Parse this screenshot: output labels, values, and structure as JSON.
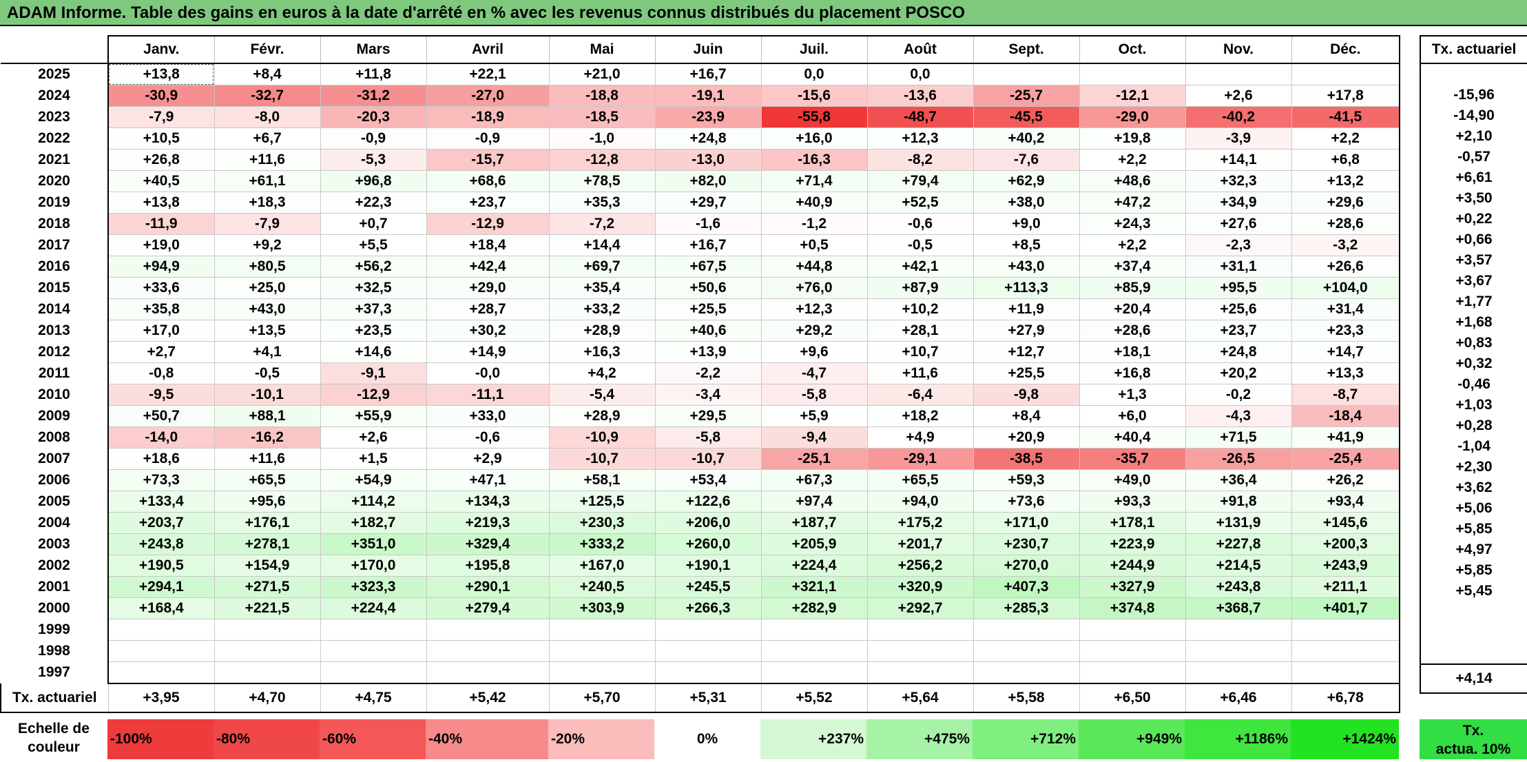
{
  "title": "ADAM Informe. Table des gains en euros à la date d'arrêté en % avec les revenus connus distribués du placement POSCO",
  "months": [
    "Janv.",
    "Févr.",
    "Mars",
    "Avril",
    "Mai",
    "Juin",
    "Juil.",
    "Août",
    "Sept.",
    "Oct.",
    "Nov.",
    "Déc."
  ],
  "side_header": "Tx. actuariel",
  "rows": [
    {
      "year": "2025",
      "vals": [
        "+13,8",
        "+8,4",
        "+11,8",
        "+22,1",
        "+21,0",
        "+16,7",
        "0,0",
        "0,0",
        "",
        "",
        "",
        ""
      ],
      "rate": ""
    },
    {
      "year": "2024",
      "vals": [
        "-30,9",
        "-32,7",
        "-31,2",
        "-27,0",
        "-18,8",
        "-19,1",
        "-15,6",
        "-13,6",
        "-25,7",
        "-12,1",
        "+2,6",
        "+17,8"
      ],
      "rate": "-15,96"
    },
    {
      "year": "2023",
      "vals": [
        "-7,9",
        "-8,0",
        "-20,3",
        "-18,9",
        "-18,5",
        "-23,9",
        "-55,8",
        "-48,7",
        "-45,5",
        "-29,0",
        "-40,2",
        "-41,5"
      ],
      "rate": "-14,90"
    },
    {
      "year": "2022",
      "vals": [
        "+10,5",
        "+6,7",
        "-0,9",
        "-0,9",
        "-1,0",
        "+24,8",
        "+16,0",
        "+12,3",
        "+40,2",
        "+19,8",
        "-3,9",
        "+2,2"
      ],
      "rate": "+2,10"
    },
    {
      "year": "2021",
      "vals": [
        "+26,8",
        "+11,6",
        "-5,3",
        "-15,7",
        "-12,8",
        "-13,0",
        "-16,3",
        "-8,2",
        "-7,6",
        "+2,2",
        "+14,1",
        "+6,8"
      ],
      "rate": "-0,57"
    },
    {
      "year": "2020",
      "vals": [
        "+40,5",
        "+61,1",
        "+96,8",
        "+68,6",
        "+78,5",
        "+82,0",
        "+71,4",
        "+79,4",
        "+62,9",
        "+48,6",
        "+32,3",
        "+13,2"
      ],
      "rate": "+6,61"
    },
    {
      "year": "2019",
      "vals": [
        "+13,8",
        "+18,3",
        "+22,3",
        "+23,7",
        "+35,3",
        "+29,7",
        "+40,9",
        "+52,5",
        "+38,0",
        "+47,2",
        "+34,9",
        "+29,6"
      ],
      "rate": "+3,50"
    },
    {
      "year": "2018",
      "vals": [
        "-11,9",
        "-7,9",
        "+0,7",
        "-12,9",
        "-7,2",
        "-1,6",
        "-1,2",
        "-0,6",
        "+9,0",
        "+24,3",
        "+27,6",
        "+28,6"
      ],
      "rate": "+0,22"
    },
    {
      "year": "2017",
      "vals": [
        "+19,0",
        "+9,2",
        "+5,5",
        "+18,4",
        "+14,4",
        "+16,7",
        "+0,5",
        "-0,5",
        "+8,5",
        "+2,2",
        "-2,3",
        "-3,2"
      ],
      "rate": "+0,66"
    },
    {
      "year": "2016",
      "vals": [
        "+94,9",
        "+80,5",
        "+56,2",
        "+42,4",
        "+69,7",
        "+67,5",
        "+44,8",
        "+42,1",
        "+43,0",
        "+37,4",
        "+31,1",
        "+26,6"
      ],
      "rate": "+3,57"
    },
    {
      "year": "2015",
      "vals": [
        "+33,6",
        "+25,0",
        "+32,5",
        "+29,0",
        "+35,4",
        "+50,6",
        "+76,0",
        "+87,9",
        "+113,3",
        "+85,9",
        "+95,5",
        "+104,0"
      ],
      "rate": "+3,67"
    },
    {
      "year": "2014",
      "vals": [
        "+35,8",
        "+43,0",
        "+37,3",
        "+28,7",
        "+33,2",
        "+25,5",
        "+12,3",
        "+10,2",
        "+11,9",
        "+20,4",
        "+25,6",
        "+31,4"
      ],
      "rate": "+1,77"
    },
    {
      "year": "2013",
      "vals": [
        "+17,0",
        "+13,5",
        "+23,5",
        "+30,2",
        "+28,9",
        "+40,6",
        "+29,2",
        "+28,1",
        "+27,9",
        "+28,6",
        "+23,7",
        "+23,3"
      ],
      "rate": "+1,68"
    },
    {
      "year": "2012",
      "vals": [
        "+2,7",
        "+4,1",
        "+14,6",
        "+14,9",
        "+16,3",
        "+13,9",
        "+9,6",
        "+10,7",
        "+12,7",
        "+18,1",
        "+24,8",
        "+14,7"
      ],
      "rate": "+0,83"
    },
    {
      "year": "2011",
      "vals": [
        "-0,8",
        "-0,5",
        "-9,1",
        "-0,0",
        "+4,2",
        "-2,2",
        "-4,7",
        "+11,6",
        "+25,5",
        "+16,8",
        "+20,2",
        "+13,3"
      ],
      "rate": "+0,32"
    },
    {
      "year": "2010",
      "vals": [
        "-9,5",
        "-10,1",
        "-12,9",
        "-11,1",
        "-5,4",
        "-3,4",
        "-5,8",
        "-6,4",
        "-9,8",
        "+1,3",
        "-0,2",
        "-8,7"
      ],
      "rate": "-0,46"
    },
    {
      "year": "2009",
      "vals": [
        "+50,7",
        "+88,1",
        "+55,9",
        "+33,0",
        "+28,9",
        "+29,5",
        "+5,9",
        "+18,2",
        "+8,4",
        "+6,0",
        "-4,3",
        "-18,4"
      ],
      "rate": "+1,03"
    },
    {
      "year": "2008",
      "vals": [
        "-14,0",
        "-16,2",
        "+2,6",
        "-0,6",
        "-10,9",
        "-5,8",
        "-9,4",
        "+4,9",
        "+20,9",
        "+40,4",
        "+71,5",
        "+41,9"
      ],
      "rate": "+0,28"
    },
    {
      "year": "2007",
      "vals": [
        "+18,6",
        "+11,6",
        "+1,5",
        "+2,9",
        "-10,7",
        "-10,7",
        "-25,1",
        "-29,1",
        "-38,5",
        "-35,7",
        "-26,5",
        "-25,4"
      ],
      "rate": "-1,04"
    },
    {
      "year": "2006",
      "vals": [
        "+73,3",
        "+65,5",
        "+54,9",
        "+47,1",
        "+58,1",
        "+53,4",
        "+67,3",
        "+65,5",
        "+59,3",
        "+49,0",
        "+36,4",
        "+26,2"
      ],
      "rate": "+2,30"
    },
    {
      "year": "2005",
      "vals": [
        "+133,4",
        "+95,6",
        "+114,2",
        "+134,3",
        "+125,5",
        "+122,6",
        "+97,4",
        "+94,0",
        "+73,6",
        "+93,3",
        "+91,8",
        "+93,4"
      ],
      "rate": "+3,62"
    },
    {
      "year": "2004",
      "vals": [
        "+203,7",
        "+176,1",
        "+182,7",
        "+219,3",
        "+230,3",
        "+206,0",
        "+187,7",
        "+175,2",
        "+171,0",
        "+178,1",
        "+131,9",
        "+145,6"
      ],
      "rate": "+5,06"
    },
    {
      "year": "2003",
      "vals": [
        "+243,8",
        "+278,1",
        "+351,0",
        "+329,4",
        "+333,2",
        "+260,0",
        "+205,9",
        "+201,7",
        "+230,7",
        "+223,9",
        "+227,8",
        "+200,3"
      ],
      "rate": "+5,85"
    },
    {
      "year": "2002",
      "vals": [
        "+190,5",
        "+154,9",
        "+170,0",
        "+195,8",
        "+167,0",
        "+190,1",
        "+224,4",
        "+256,2",
        "+270,0",
        "+244,9",
        "+214,5",
        "+243,9"
      ],
      "rate": "+4,97"
    },
    {
      "year": "2001",
      "vals": [
        "+294,1",
        "+271,5",
        "+323,3",
        "+290,1",
        "+240,5",
        "+245,5",
        "+321,1",
        "+320,9",
        "+407,3",
        "+327,9",
        "+243,8",
        "+211,1"
      ],
      "rate": "+5,85"
    },
    {
      "year": "2000",
      "vals": [
        "+168,4",
        "+221,5",
        "+224,4",
        "+279,4",
        "+303,9",
        "+266,3",
        "+282,9",
        "+292,7",
        "+285,3",
        "+374,8",
        "+368,7",
        "+401,7"
      ],
      "rate": "+5,45"
    },
    {
      "year": "1999",
      "vals": [
        "",
        "",
        "",
        "",
        "",
        "",
        "",
        "",
        "",
        "",
        "",
        ""
      ],
      "rate": ""
    },
    {
      "year": "1998",
      "vals": [
        "",
        "",
        "",
        "",
        "",
        "",
        "",
        "",
        "",
        "",
        "",
        ""
      ],
      "rate": ""
    },
    {
      "year": "1997",
      "vals": [
        "",
        "",
        "",
        "",
        "",
        "",
        "",
        "",
        "",
        "",
        "",
        ""
      ],
      "rate": ""
    }
  ],
  "footer": {
    "label": "Tx. actuariel",
    "vals": [
      "+3,95",
      "+4,70",
      "+4,75",
      "+5,42",
      "+5,70",
      "+5,31",
      "+5,52",
      "+5,64",
      "+5,58",
      "+6,50",
      "+6,46",
      "+6,78"
    ],
    "rate": "+4,14"
  },
  "scale": {
    "label_line1": "Echelle de",
    "label_line2": "couleur",
    "items": [
      {
        "text": "-100%",
        "color": "#ee3b3b",
        "kind": "neg"
      },
      {
        "text": "-80%",
        "color": "#f04848",
        "kind": "neg"
      },
      {
        "text": "-60%",
        "color": "#f35757",
        "kind": "neg"
      },
      {
        "text": "-40%",
        "color": "#f78a8a",
        "kind": "neg"
      },
      {
        "text": "-20%",
        "color": "#fbbcbc",
        "kind": "neg"
      },
      {
        "text": "0%",
        "color": "#ffffff",
        "kind": "zero"
      },
      {
        "text": "+237%",
        "color": "#d4f8d4",
        "kind": "pos"
      },
      {
        "text": "+475%",
        "color": "#a6f2a6",
        "kind": "pos"
      },
      {
        "text": "+712%",
        "color": "#7fef7f",
        "kind": "pos"
      },
      {
        "text": "+949%",
        "color": "#5ae85a",
        "kind": "pos"
      },
      {
        "text": "+1186%",
        "color": "#3ee63e",
        "kind": "pos"
      },
      {
        "text": "+1424%",
        "color": "#22e222",
        "kind": "pos"
      }
    ],
    "side_line1": "Tx.",
    "side_line2": "actua. 10%"
  }
}
